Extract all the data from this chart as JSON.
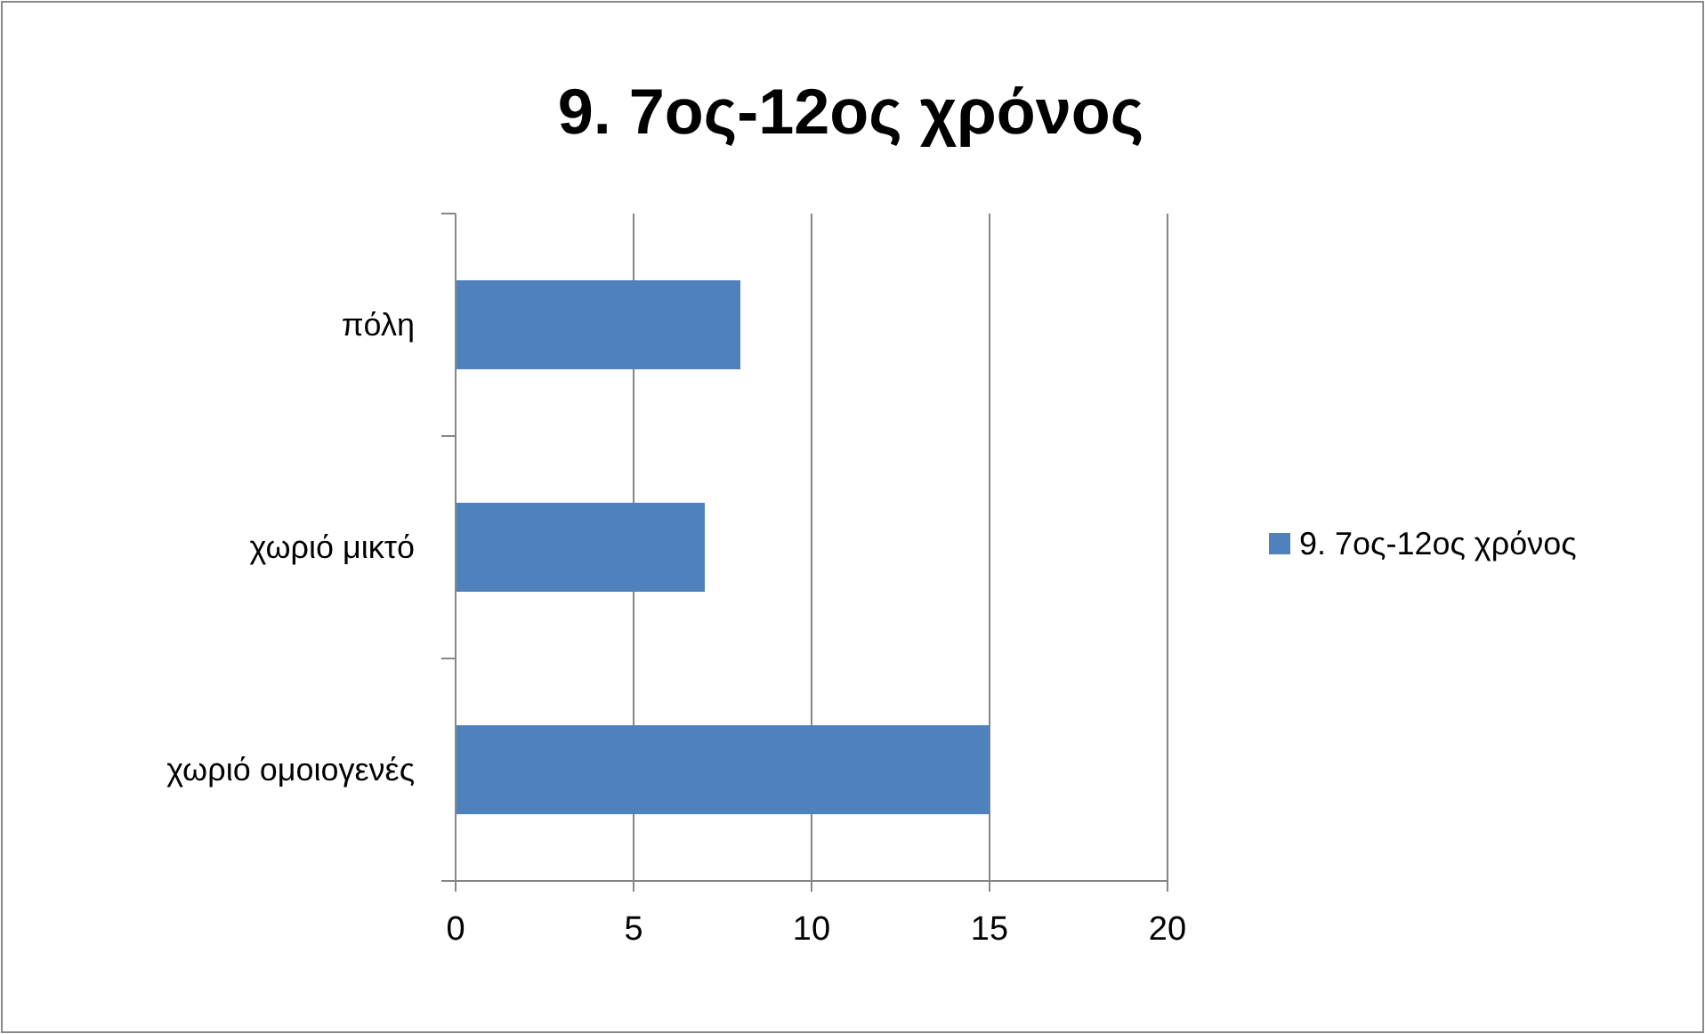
{
  "chart_data": {
    "type": "bar",
    "orientation": "horizontal",
    "title": "9. 7ος-12ος χρόνος",
    "categories": [
      "πόλη",
      "χωριό μικτό",
      "χωριό ομοιογενές"
    ],
    "series": [
      {
        "name": "9. 7ος-12ος χρόνος",
        "color": "#4f81bd",
        "values": [
          8,
          7,
          15
        ]
      }
    ],
    "xlim": [
      0,
      20
    ],
    "xticks": [
      0,
      5,
      10,
      15,
      20
    ],
    "grid": "x",
    "legend": "right"
  }
}
